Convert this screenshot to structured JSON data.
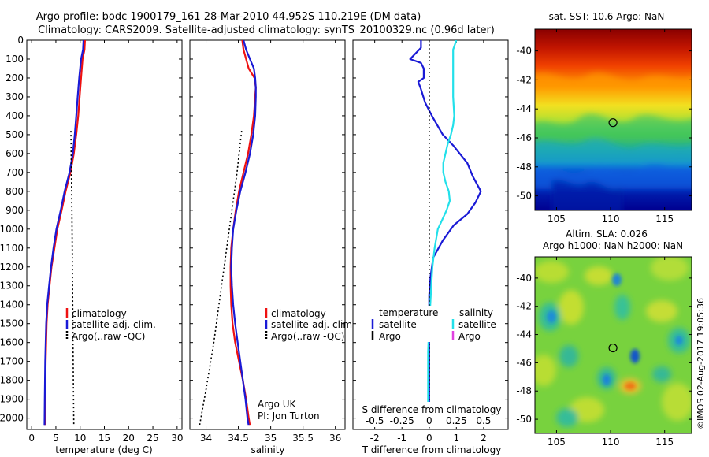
{
  "title_line1": "Argo profile: bodc 1900179_161 28-Mar-2010 44.952S 110.219E (DM data)",
  "title_line2": "Climatology: CARS2009. Satellite-adjusted climatology: synTS_20100329.nc (0.96d later)",
  "stamp": "©IMOS 02-Aug-2017 19:05:36",
  "colors": {
    "climatology": "#ee1111",
    "satellite": "#1a1ad6",
    "argo": "#000000",
    "s_satellite": "#22e0ea",
    "s_argo": "#e040e0"
  },
  "chart_data": [
    {
      "type": "line",
      "xlabel": "temperature (deg C)",
      "xlim": [
        -1,
        31
      ],
      "xticks": [
        0,
        5,
        10,
        15,
        20,
        25,
        30
      ],
      "xticklabels": [
        "0",
        "5",
        "10",
        "15",
        "20",
        "25",
        "30"
      ],
      "ylim": [
        2060,
        0
      ],
      "yticks": [
        0,
        100,
        200,
        300,
        400,
        500,
        600,
        700,
        800,
        900,
        1000,
        1100,
        1200,
        1300,
        1400,
        1500,
        1600,
        1700,
        1800,
        1900,
        2000
      ],
      "yticklabels": [
        "0",
        "100",
        "200",
        "300",
        "400",
        "500",
        "600",
        "700",
        "800",
        "900",
        "1000",
        "1100",
        "1200",
        "1300",
        "1400",
        "1500",
        "1600",
        "1700",
        "1800",
        "1900",
        "2000"
      ],
      "legend": [
        "climatology",
        "satellite-adj. clim.",
        "Argo(..raw -QC)"
      ],
      "series": [
        {
          "name": "climatology",
          "style": "solid",
          "x": [
            11.0,
            10.9,
            10.5,
            10.2,
            9.9,
            9.6,
            9.2,
            8.7,
            8.0,
            7.0,
            6.2,
            5.3,
            4.7,
            4.1,
            3.7,
            3.3,
            3.1,
            3.0,
            2.9,
            2.85,
            2.8,
            2.75
          ],
          "y": [
            0,
            50,
            100,
            200,
            300,
            400,
            500,
            600,
            700,
            800,
            900,
            1000,
            1100,
            1200,
            1300,
            1400,
            1500,
            1600,
            1700,
            1800,
            1900,
            2040
          ]
        },
        {
          "name": "satellite-adj. clim.",
          "style": "solid",
          "x": [
            10.7,
            10.6,
            10.2,
            9.8,
            9.5,
            9.2,
            8.9,
            8.5,
            7.8,
            6.8,
            6.0,
            5.1,
            4.5,
            4.0,
            3.6,
            3.2,
            3.0,
            2.9,
            2.8,
            2.75,
            2.7,
            2.65
          ],
          "y": [
            0,
            50,
            100,
            200,
            300,
            400,
            500,
            600,
            700,
            800,
            900,
            1000,
            1100,
            1200,
            1300,
            1400,
            1500,
            1600,
            1700,
            1800,
            1900,
            2040
          ]
        },
        {
          "name": "Argo(..raw -QC)",
          "style": "dotted",
          "x": [
            8.1,
            8.2,
            8.3,
            8.4,
            8.5,
            8.6,
            8.7
          ],
          "y": [
            480,
            700,
            900,
            1200,
            1500,
            1800,
            2040
          ]
        }
      ]
    },
    {
      "type": "line",
      "xlabel": "salinity",
      "xlim": [
        33.75,
        36.15
      ],
      "xticks": [
        34,
        34.5,
        35,
        35.5,
        36
      ],
      "xticklabels": [
        "34",
        "34.5",
        "35",
        "35.5",
        "36"
      ],
      "ylim": [
        2060,
        0
      ],
      "legend": [
        "climatology",
        "satellite-adj. clim.",
        "Argo(..raw -QC)"
      ],
      "annotation": [
        "Argo UK",
        "PI: Jon Turton"
      ],
      "series": [
        {
          "name": "climatology",
          "style": "solid",
          "x": [
            34.56,
            34.58,
            34.62,
            34.66,
            34.75,
            34.77,
            34.76,
            34.74,
            34.7,
            34.65,
            34.58,
            34.51,
            34.46,
            34.42,
            34.39,
            34.38,
            34.38,
            34.39,
            34.41,
            34.45,
            34.51,
            34.57,
            34.62,
            34.66,
            34.68
          ],
          "y": [
            0,
            50,
            100,
            150,
            200,
            250,
            300,
            400,
            500,
            600,
            700,
            800,
            900,
            1000,
            1100,
            1200,
            1300,
            1400,
            1500,
            1600,
            1700,
            1800,
            1900,
            2000,
            2040
          ]
        },
        {
          "name": "satellite-adj. clim.",
          "style": "solid",
          "x": [
            34.58,
            34.62,
            34.68,
            34.74,
            34.76,
            34.77,
            34.77,
            34.76,
            34.73,
            34.68,
            34.61,
            34.53,
            34.47,
            34.42,
            34.4,
            34.39,
            34.4,
            34.42,
            34.45,
            34.49,
            34.53,
            34.57,
            34.61,
            34.64,
            34.66
          ],
          "y": [
            0,
            50,
            100,
            150,
            200,
            250,
            300,
            400,
            500,
            600,
            700,
            800,
            900,
            1000,
            1100,
            1200,
            1300,
            1400,
            1500,
            1600,
            1700,
            1800,
            1900,
            2000,
            2040
          ]
        },
        {
          "name": "Argo(..raw -QC)",
          "style": "dotted",
          "x": [
            34.55,
            34.48,
            34.36,
            34.24,
            34.12,
            34.0,
            33.9
          ],
          "y": [
            480,
            700,
            1000,
            1300,
            1600,
            1850,
            2040
          ]
        }
      ]
    },
    {
      "type": "line",
      "xlabel": "T difference from climatology",
      "xlabel_top": "S difference from climatology",
      "xlim": [
        -2.8,
        2.9
      ],
      "xticks": [
        -2,
        -1,
        0,
        1,
        2
      ],
      "xticklabels": [
        "-2",
        "-1",
        "0",
        "1",
        "2"
      ],
      "xticks_top": [
        -0.5,
        -0.25,
        0,
        0.25,
        0.5
      ],
      "xticklabels_top": [
        "-0.5",
        "-0.25",
        "0",
        "0.25",
        "0.5"
      ],
      "ylim": [
        2060,
        0
      ],
      "legend_T": {
        "title": "temperature",
        "items": [
          "satellite",
          "Argo"
        ]
      },
      "legend_S": {
        "title": "salinity",
        "items": [
          "satellite",
          "Argo"
        ]
      },
      "series": [
        {
          "name": "T satellite",
          "style": "solid",
          "x": [
            -0.3,
            -0.3,
            -0.7,
            -0.3,
            -0.2,
            -0.2,
            -0.4,
            -0.3,
            -0.15,
            0.1,
            0.3,
            0.5,
            0.9,
            1.4,
            1.6,
            1.9,
            1.7,
            1.4,
            0.9,
            0.5,
            0.15,
            0.05,
            0.0,
            0.0,
            0.0,
            0.0,
            0.0,
            0.0,
            0.0
          ],
          "y": [
            0,
            40,
            100,
            120,
            150,
            200,
            220,
            260,
            330,
            400,
            450,
            500,
            560,
            650,
            720,
            800,
            860,
            920,
            980,
            1060,
            1150,
            1250,
            1350,
            1500,
            1650,
            1800,
            1900,
            2000,
            2040
          ]
        },
        {
          "name": "S satellite",
          "style": "solid",
          "x": [
            0.25,
            0.22,
            0.22,
            0.22,
            0.22,
            0.23,
            0.22,
            0.2,
            0.17,
            0.15,
            0.13,
            0.13,
            0.15,
            0.18,
            0.19,
            0.16,
            0.12,
            0.08,
            0.05,
            0.03,
            0.02,
            0.01,
            0.0,
            -0.01,
            -0.01,
            -0.01,
            -0.01
          ],
          "y": [
            0,
            50,
            100,
            200,
            300,
            400,
            450,
            500,
            550,
            600,
            650,
            700,
            750,
            800,
            850,
            900,
            950,
            1000,
            1100,
            1200,
            1300,
            1400,
            1500,
            1650,
            1800,
            1950,
            2040
          ]
        },
        {
          "name": "zero",
          "style": "dotted",
          "x": [
            0,
            0
          ],
          "y": [
            0,
            2060
          ]
        }
      ]
    },
    {
      "type": "heatmap",
      "title": "sat. SST: 10.6  Argo: NaN",
      "xlim": [
        103,
        117.5
      ],
      "ylim": [
        -51,
        -38.5
      ],
      "xticks": [
        105,
        110,
        115
      ],
      "yticks": [
        -40,
        -42,
        -44,
        -46,
        -48,
        -50
      ],
      "xticklabels": [
        "105",
        "110",
        "115"
      ],
      "yticklabels": [
        "-40",
        "-42",
        "-44",
        "-46",
        "-48",
        "-50"
      ],
      "marker": {
        "x": 110.22,
        "y": -44.95
      }
    },
    {
      "type": "heatmap",
      "title": [
        "Altim. SLA: 0.026",
        "Argo h1000: NaN h2000: NaN"
      ],
      "xlim": [
        103,
        117.5
      ],
      "ylim": [
        -51,
        -38.5
      ],
      "xticks": [
        105,
        110,
        115
      ],
      "yticks": [
        -40,
        -42,
        -44,
        -46,
        -48,
        -50
      ],
      "xticklabels": [
        "105",
        "110",
        "115"
      ],
      "yticklabels": [
        "-40",
        "-42",
        "-44",
        "-46",
        "-48",
        "-50"
      ],
      "marker": {
        "x": 110.22,
        "y": -44.95
      }
    }
  ]
}
